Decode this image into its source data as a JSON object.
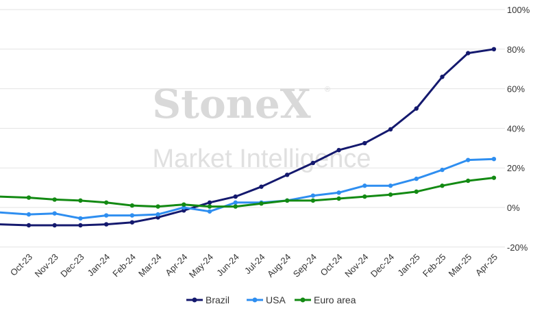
{
  "watermark": {
    "brand": "StoneX",
    "registered": "®",
    "subtitle": "Market Intelligence"
  },
  "chart_data": {
    "type": "line",
    "categories": [
      "Oct-23",
      "Nov-23",
      "Dec-23",
      "Jan-24",
      "Feb-24",
      "Mar-24",
      "Apr-24",
      "May-24",
      "Jun-24",
      "Jul-24",
      "Aug-24",
      "Sep-24",
      "Oct-24",
      "Nov-24",
      "Dec-24",
      "Jan-25",
      "Feb-25",
      "Mar-25",
      "Apr-25"
    ],
    "y_ticks": [
      "-20%",
      "0%",
      "20%",
      "40%",
      "60%",
      "80%",
      "100%"
    ],
    "y_tick_values": [
      -20,
      0,
      20,
      40,
      60,
      80,
      100
    ],
    "ylim": [
      -20,
      100
    ],
    "y_axis_side": "right",
    "grid": "horizontal",
    "legend_position": "bottom",
    "series": [
      {
        "name": "Brazil",
        "color": "#14196e",
        "start": -8.5,
        "values": [
          -9,
          -9,
          -9,
          -8.5,
          -7.5,
          -5,
          -1.5,
          2.5,
          5.5,
          10.5,
          16.5,
          22.5,
          29,
          32.5,
          39.5,
          50,
          66,
          78,
          80
        ]
      },
      {
        "name": "USA",
        "color": "#2e8ef0",
        "start": -2.5,
        "values": [
          -3.5,
          -3,
          -5.5,
          -4,
          -4,
          -3.5,
          0,
          -2,
          2.5,
          2.5,
          3.5,
          6,
          7.5,
          11,
          11,
          14.5,
          19,
          24,
          24.5
        ]
      },
      {
        "name": "Euro area",
        "color": "#138a13",
        "start": 5.5,
        "values": [
          5,
          4,
          3.5,
          2.5,
          1,
          0.5,
          1.5,
          0.5,
          0.5,
          2,
          3.5,
          3.5,
          4.5,
          5.5,
          6.5,
          8,
          11,
          13.5,
          15
        ]
      }
    ]
  }
}
